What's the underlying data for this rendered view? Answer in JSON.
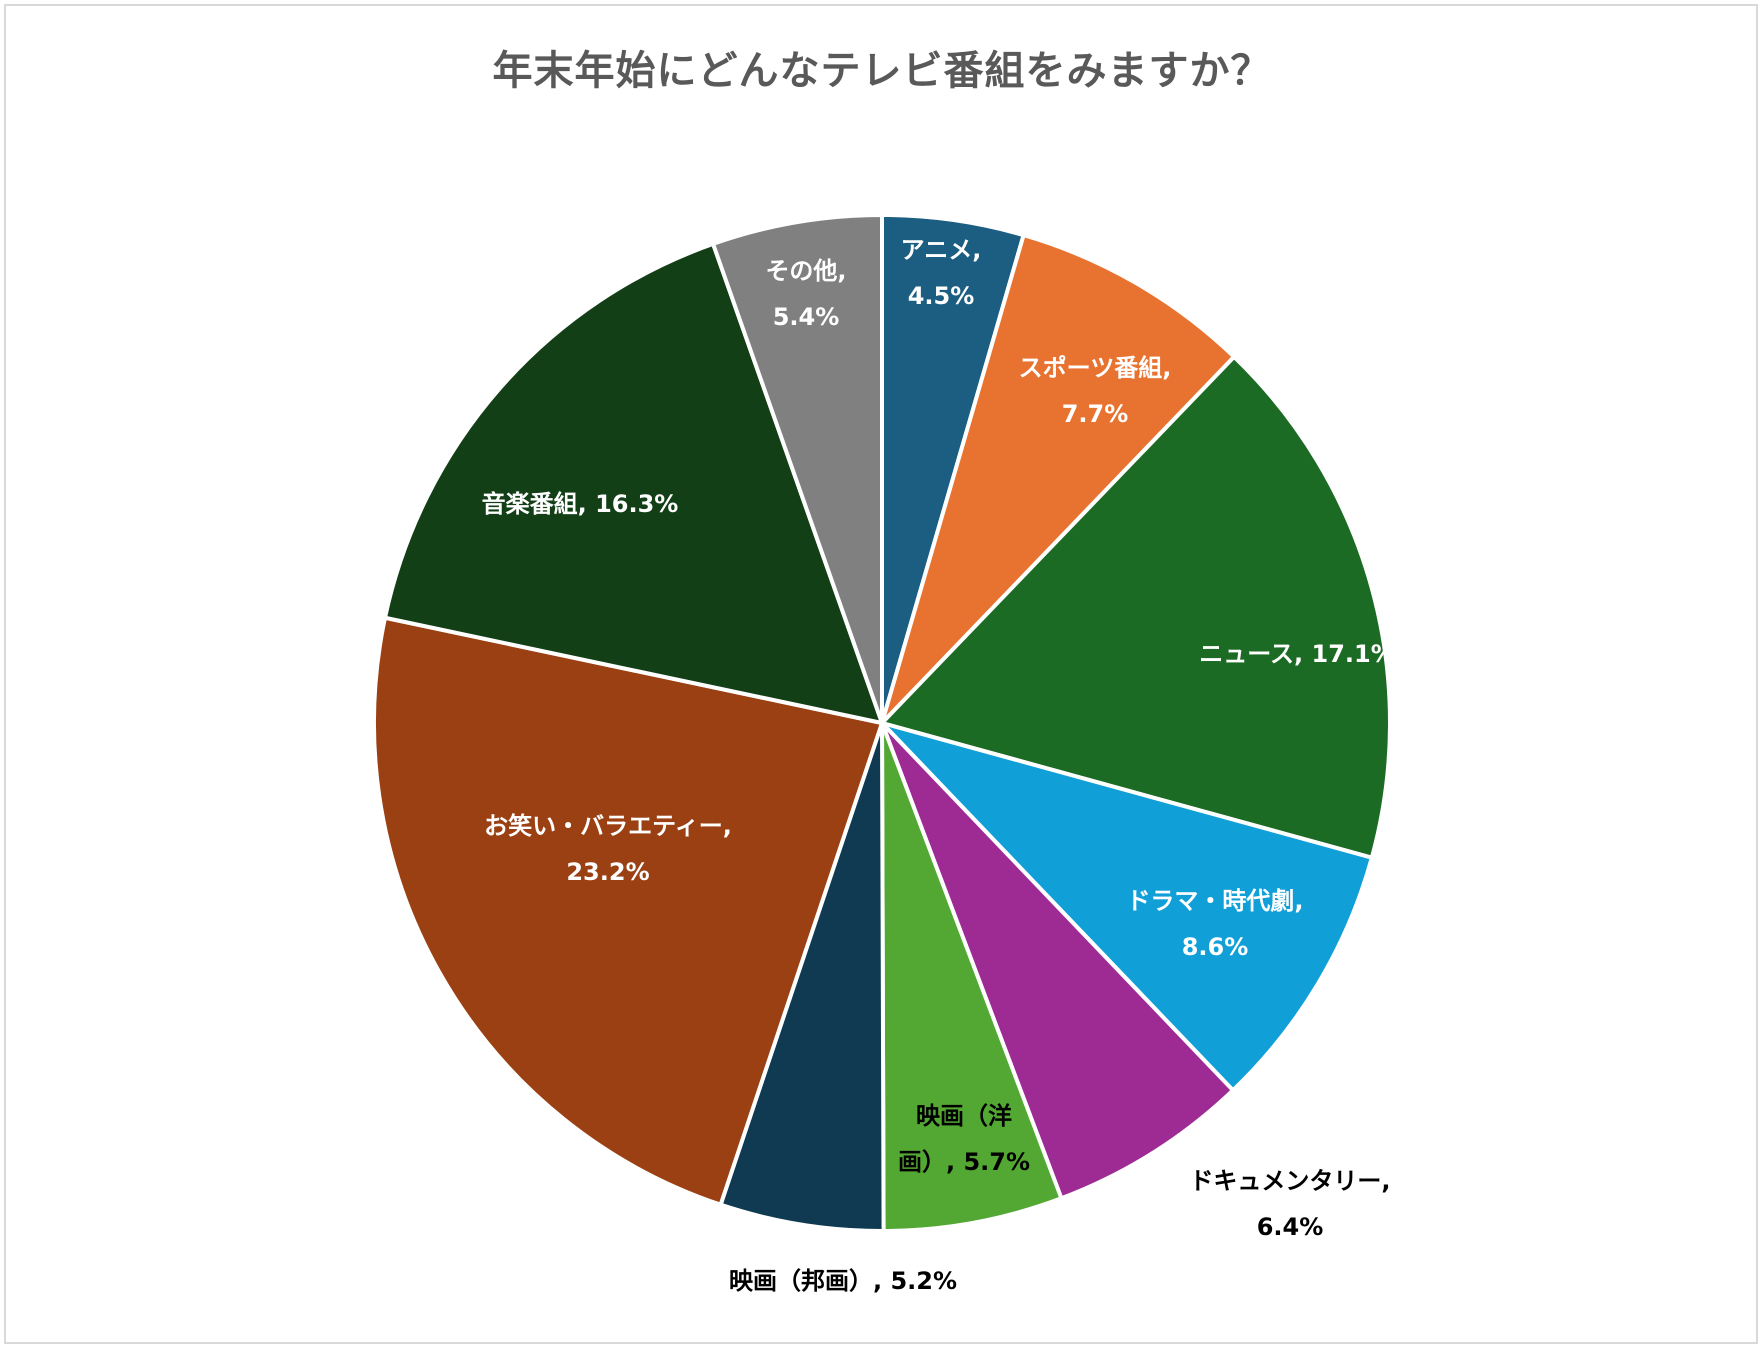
{
  "chart_data": {
    "type": "pie",
    "title": "年末年始にどんなテレビ番組をみますか？",
    "slices": [
      {
        "label": "アニメ",
        "value": 4.5,
        "display": "4.5%",
        "color": "#1b5e82",
        "label_color": "#ffffff",
        "lines": [
          "アニメ,",
          "4.5%"
        ]
      },
      {
        "label": "スポーツ番組",
        "value": 7.7,
        "display": "7.7%",
        "color": "#e87331",
        "label_color": "#ffffff",
        "lines": [
          "スポーツ番組,",
          "7.7%"
        ]
      },
      {
        "label": "ニュース",
        "value": 17.1,
        "display": "17.1%",
        "color": "#1c6b25",
        "label_color": "#ffffff",
        "lines": [
          "ニュース, 17.1%"
        ]
      },
      {
        "label": "ドラマ・時代劇",
        "value": 8.6,
        "display": "8.6%",
        "color": "#119fd8",
        "label_color": "#ffffff",
        "lines": [
          "ドラマ・時代劇,",
          "8.6%"
        ]
      },
      {
        "label": "ドキュメンタリー",
        "value": 6.4,
        "display": "6.4%",
        "color": "#9e2b94",
        "label_color": "#000000",
        "lines": [
          "ドキュメンタリー,",
          "6.4%"
        ]
      },
      {
        "label": "映画（洋画）",
        "value": 5.7,
        "display": "5.7%",
        "color": "#52a832",
        "label_color": "#000000",
        "lines": [
          "映画（洋",
          "画）, 5.7%"
        ]
      },
      {
        "label": "映画（邦画）",
        "value": 5.2,
        "display": "5.2%",
        "color": "#0f3a52",
        "label_color": "#000000",
        "lines": [
          "映画（邦画）, 5.2%"
        ]
      },
      {
        "label": "お笑い・バラエティー",
        "value": 23.2,
        "display": "23.2%",
        "color": "#9a4012",
        "label_color": "#ffffff",
        "lines": [
          "お笑い・バラエティー,",
          "23.2%"
        ]
      },
      {
        "label": "音楽番組",
        "value": 16.3,
        "display": "16.3%",
        "color": "#133f17",
        "label_color": "#ffffff",
        "lines": [
          "音楽番組, 16.3%"
        ]
      },
      {
        "label": "その他",
        "value": 5.4,
        "display": "5.4%",
        "color": "#808080",
        "label_color": "#ffffff",
        "lines": [
          "その他,",
          "5.4%"
        ]
      }
    ]
  }
}
